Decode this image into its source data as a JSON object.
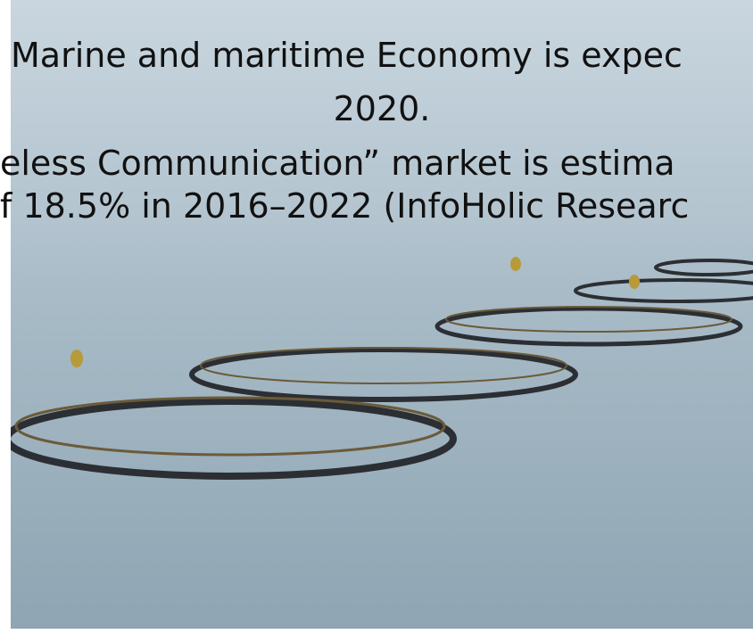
{
  "slide": {
    "lines": [
      "Marine and maritime Economy is expec",
      "2020.",
      "eless Communication” market is estima",
      "f 18.5% in 2016–2022 (InfoHolic Researc"
    ]
  }
}
